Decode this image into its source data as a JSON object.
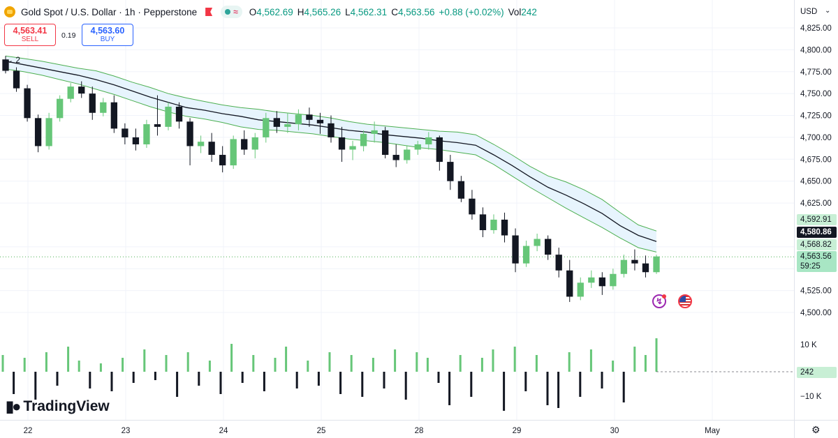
{
  "legend": {
    "symbol_title": "Gold Spot / U.S. Dollar · 1h · Pepperstone",
    "open_key": "O",
    "open": "4,562.69",
    "high_key": "H",
    "high": "4,565.26",
    "low_key": "L",
    "low": "4,562.31",
    "close_key": "C",
    "close": "4,563.56",
    "change": "+0.88 (+0.02%)",
    "vol_key": "Vol",
    "vol": "242",
    "pill_wave": "≈"
  },
  "trade": {
    "sell_price": "4,563.41",
    "sell_label": "SELL",
    "spread": "0.19",
    "buy_price": "4,563.60",
    "buy_label": "BUY"
  },
  "indicator_toggle": "⌄ 2",
  "price_axis": {
    "currency": "USD",
    "labels": [
      "4,825.00",
      "4,800.00",
      "4,775.00",
      "4,750.00",
      "4,725.00",
      "4,700.00",
      "4,675.00",
      "4,650.00",
      "4,625.00",
      "4,525.00",
      "4,500.00"
    ],
    "upper_band": "4,592.91",
    "mid_line": "4,580.86",
    "lower_band": "4,568.82",
    "last_price": "4,563.56",
    "countdown": "59:25"
  },
  "volume_axis": {
    "labels": [
      "10 K",
      "−10 K"
    ],
    "current": "242"
  },
  "time_axis": {
    "labels": [
      "22",
      "23",
      "24",
      "25",
      "28",
      "29",
      "30",
      "May"
    ]
  },
  "brand": "TradingView",
  "colors": {
    "up": "#66c678",
    "down": "#131722",
    "band_line": "#4caf50",
    "band_fill": "#e3f2fd",
    "mid": "#131722"
  },
  "chart_data": {
    "type": "candlestick",
    "title": "Gold Spot / U.S. Dollar · 1h · Pepperstone",
    "ylim": [
      4490,
      4840
    ],
    "yticks": [
      4825,
      4800,
      4775,
      4750,
      4725,
      4700,
      4675,
      4650,
      4625,
      4525,
      4500
    ],
    "xlabels": [
      "22",
      "23",
      "24",
      "25",
      "28",
      "29",
      "30",
      "May"
    ],
    "last_price": 4563.56,
    "series": [
      {
        "name": "upper_band",
        "values": [
          4793,
          4790,
          4787,
          4783,
          4779,
          4776,
          4770,
          4763,
          4757,
          4750,
          4745,
          4741,
          4737,
          4734,
          4732,
          4729,
          4727,
          4725,
          4722,
          4718,
          4715,
          4713,
          4711,
          4709,
          4707,
          4706,
          4703,
          4692,
          4680,
          4667,
          4656,
          4649,
          4640,
          4629,
          4614,
          4600,
          4593
        ]
      },
      {
        "name": "mid_line",
        "values": [
          4787,
          4783,
          4779,
          4775,
          4771,
          4766,
          4760,
          4753,
          4746,
          4740,
          4734,
          4731,
          4727,
          4724,
          4720,
          4718,
          4716,
          4714,
          4711,
          4708,
          4706,
          4703,
          4701,
          4699,
          4696,
          4694,
          4691,
          4680,
          4668,
          4655,
          4643,
          4634,
          4624,
          4613,
          4599,
          4588,
          4581
        ]
      },
      {
        "name": "lower_band",
        "values": [
          4778,
          4775,
          4771,
          4766,
          4761,
          4755,
          4749,
          4742,
          4735,
          4729,
          4724,
          4721,
          4717,
          4712,
          4709,
          4708,
          4706,
          4704,
          4701,
          4698,
          4696,
          4694,
          4691,
          4688,
          4686,
          4683,
          4680,
          4669,
          4656,
          4643,
          4631,
          4619,
          4608,
          4597,
          4585,
          4574,
          4569
        ]
      }
    ],
    "candles": [
      [
        4789,
        4793,
        4773,
        4776
      ],
      [
        4776,
        4780,
        4752,
        4756
      ],
      [
        4756,
        4760,
        4718,
        4722
      ],
      [
        4722,
        4726,
        4683,
        4690
      ],
      [
        4690,
        4728,
        4686,
        4722
      ],
      [
        4722,
        4748,
        4718,
        4744
      ],
      [
        4744,
        4762,
        4740,
        4758
      ],
      [
        4758,
        4764,
        4745,
        4750
      ],
      [
        4750,
        4758,
        4720,
        4728
      ],
      [
        4728,
        4745,
        4724,
        4740
      ],
      [
        4740,
        4748,
        4705,
        4710
      ],
      [
        4710,
        4716,
        4692,
        4700
      ],
      [
        4700,
        4710,
        4685,
        4692
      ],
      [
        4692,
        4720,
        4688,
        4715
      ],
      [
        4715,
        4748,
        4702,
        4712
      ],
      [
        4712,
        4740,
        4708,
        4735
      ],
      [
        4735,
        4740,
        4710,
        4718
      ],
      [
        4718,
        4722,
        4668,
        4690
      ],
      [
        4690,
        4702,
        4682,
        4695
      ],
      [
        4695,
        4705,
        4672,
        4680
      ],
      [
        4680,
        4690,
        4660,
        4668
      ],
      [
        4668,
        4702,
        4664,
        4698
      ],
      [
        4698,
        4708,
        4680,
        4686
      ],
      [
        4686,
        4705,
        4676,
        4700
      ],
      [
        4700,
        4728,
        4694,
        4722
      ],
      [
        4722,
        4730,
        4705,
        4712
      ],
      [
        4712,
        4728,
        4705,
        4715
      ],
      [
        4715,
        4732,
        4708,
        4726
      ],
      [
        4726,
        4734,
        4712,
        4720
      ],
      [
        4720,
        4728,
        4704,
        4716
      ],
      [
        4716,
        4725,
        4694,
        4700
      ],
      [
        4700,
        4712,
        4672,
        4686
      ],
      [
        4686,
        4696,
        4674,
        4690
      ],
      [
        4690,
        4708,
        4684,
        4704
      ],
      [
        4704,
        4718,
        4694,
        4708
      ],
      [
        4708,
        4712,
        4676,
        4680
      ],
      [
        4680,
        4692,
        4666,
        4674
      ],
      [
        4674,
        4690,
        4670,
        4686
      ],
      [
        4686,
        4696,
        4680,
        4692
      ],
      [
        4692,
        4706,
        4686,
        4700
      ],
      [
        4700,
        4702,
        4662,
        4672
      ],
      [
        4672,
        4680,
        4640,
        4650
      ],
      [
        4650,
        4656,
        4626,
        4630
      ],
      [
        4630,
        4640,
        4606,
        4612
      ],
      [
        4612,
        4620,
        4586,
        4594
      ],
      [
        4594,
        4612,
        4590,
        4606
      ],
      [
        4606,
        4614,
        4580,
        4588
      ],
      [
        4588,
        4596,
        4546,
        4556
      ],
      [
        4556,
        4582,
        4552,
        4576
      ],
      [
        4576,
        4590,
        4570,
        4584
      ],
      [
        4584,
        4588,
        4560,
        4566
      ],
      [
        4566,
        4574,
        4540,
        4548
      ],
      [
        4548,
        4560,
        4512,
        4518
      ],
      [
        4518,
        4540,
        4514,
        4534
      ],
      [
        4534,
        4548,
        4528,
        4540
      ],
      [
        4540,
        4546,
        4520,
        4530
      ],
      [
        4530,
        4550,
        4526,
        4544
      ],
      [
        4544,
        4566,
        4540,
        4560
      ],
      [
        4560,
        4572,
        4548,
        4556
      ],
      [
        4556,
        4565,
        4540,
        4546
      ],
      [
        4546,
        4566,
        4544,
        4564
      ]
    ],
    "volume": {
      "ylim": [
        -15000,
        15000
      ],
      "values": [
        6000,
        -8000,
        5000,
        -10000,
        7000,
        -5000,
        9000,
        4000,
        -6000,
        3000,
        -7000,
        5000,
        -4000,
        8000,
        -3000,
        6000,
        -9000,
        7000,
        -5000,
        4000,
        -8000,
        10000,
        -4000,
        6000,
        -7000,
        5000,
        9000,
        -6000,
        4000,
        -5000,
        7000,
        -8000,
        6000,
        -9000,
        5000,
        -6000,
        8000,
        -10000,
        7000,
        5000,
        -4000,
        -12000,
        6000,
        -9000,
        5000,
        8000,
        -14000,
        9000,
        -7000,
        6000,
        -12000,
        -13000,
        7000,
        -9000,
        8000,
        -6000,
        4000,
        -11000,
        9000,
        6000,
        12000
      ]
    }
  }
}
